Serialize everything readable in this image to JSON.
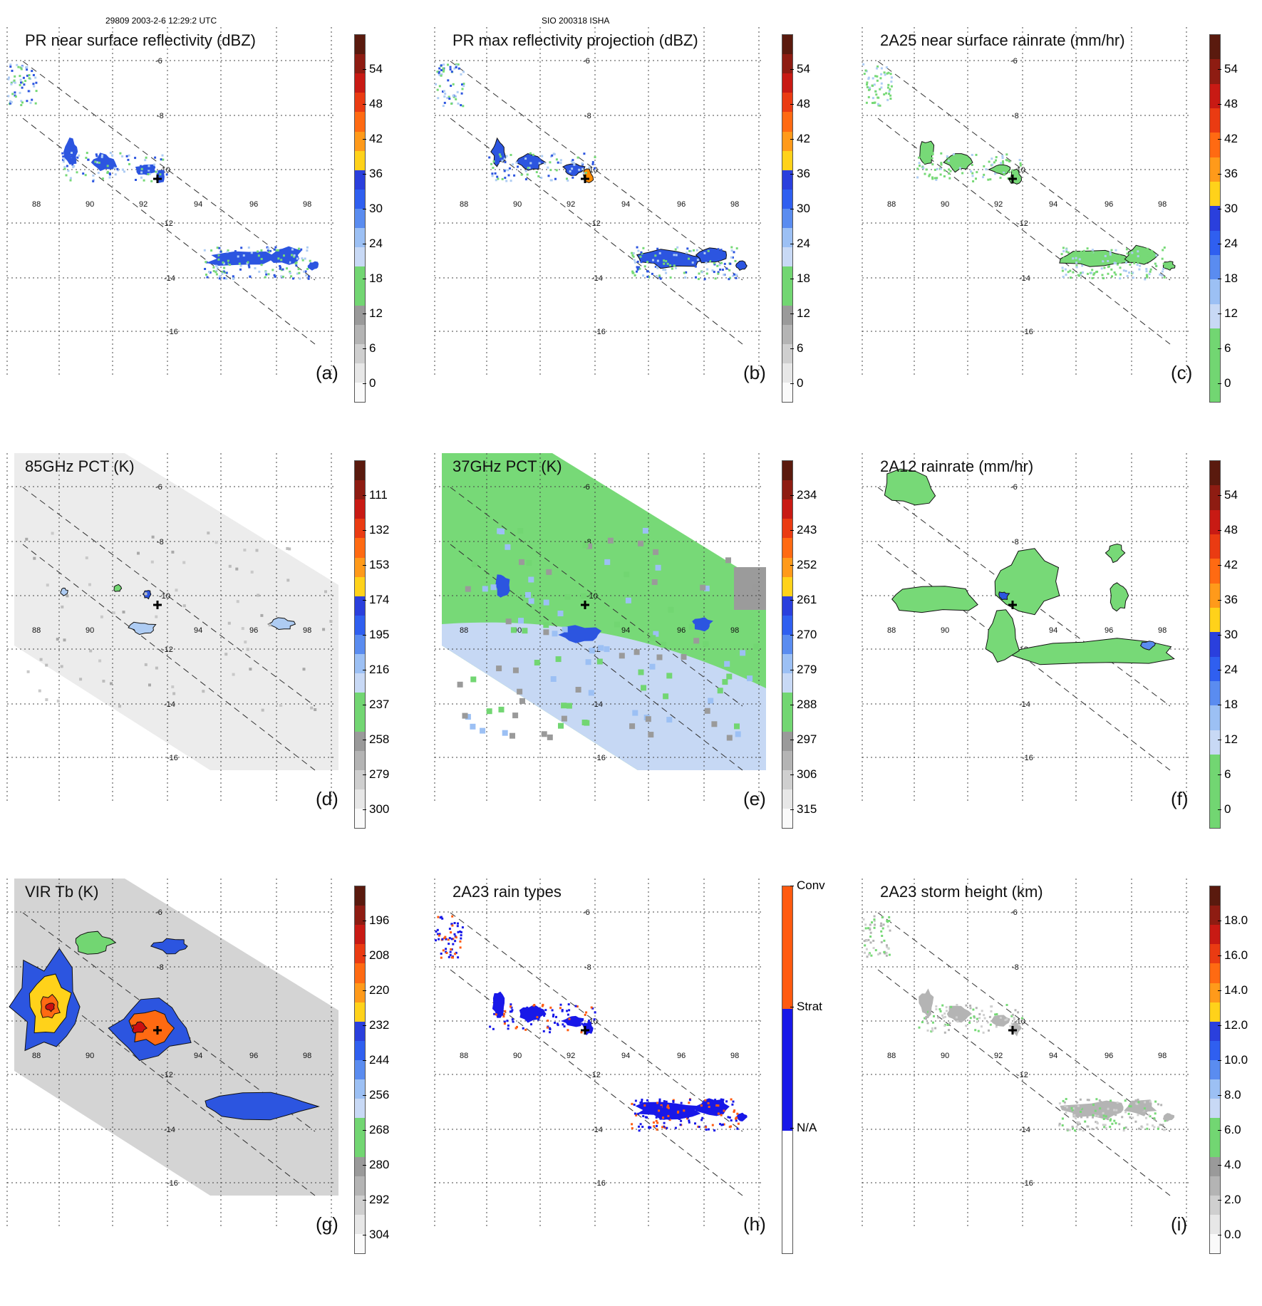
{
  "header": {
    "left": "29809 2003-2-6 12:29:2 UTC",
    "center": "SIO 200318 ISHA"
  },
  "grid": {
    "lon_labels": [
      "88",
      "90",
      "92",
      "94",
      "96",
      "98"
    ],
    "lat_labels": [
      "-6",
      "-8",
      "-10",
      "-12",
      "-14",
      "-16"
    ]
  },
  "colors": {
    "green": "#77d977",
    "light_blue": "#aeccf3",
    "blue": "#2c55e0",
    "yellow": "#f5e400",
    "orange": "#ff8c00",
    "red": "#cc1010",
    "storm_center_marker": "#000000"
  },
  "panels": [
    {
      "id": "a",
      "title": "PR near surface reflectivity (dBZ)",
      "label": "(a)",
      "scale": "dbz",
      "ticks": [
        "54",
        "48",
        "42",
        "36",
        "30",
        "24",
        "18",
        "12",
        "6",
        "0"
      ]
    },
    {
      "id": "b",
      "title": "PR max reflectivity projection (dBZ)",
      "label": "(b)",
      "scale": "dbz",
      "ticks": [
        "54",
        "48",
        "42",
        "36",
        "30",
        "24",
        "18",
        "12",
        "6",
        "0"
      ]
    },
    {
      "id": "c",
      "title": "2A25 near surface rainrate (mm/hr)",
      "label": "(c)",
      "scale": "rain",
      "ticks": [
        "54",
        "48",
        "42",
        "36",
        "30",
        "24",
        "18",
        "12",
        "6",
        "0"
      ]
    },
    {
      "id": "d",
      "title": "85GHz PCT (K)",
      "label": "(d)",
      "scale": "pct",
      "ticks": [
        "111",
        "132",
        "153",
        "174",
        "195",
        "216",
        "237",
        "258",
        "279",
        "300"
      ]
    },
    {
      "id": "e",
      "title": "37GHz PCT (K)",
      "label": "(e)",
      "scale": "pct",
      "ticks": [
        "234",
        "243",
        "252",
        "261",
        "270",
        "279",
        "288",
        "297",
        "306",
        "315"
      ]
    },
    {
      "id": "f",
      "title": "2A12 rainrate (mm/hr)",
      "label": "(f)",
      "scale": "rain",
      "ticks": [
        "54",
        "48",
        "42",
        "36",
        "30",
        "24",
        "18",
        "12",
        "6",
        "0"
      ]
    },
    {
      "id": "g",
      "title": "VIR Tb (K)",
      "label": "(g)",
      "scale": "pct",
      "ticks": [
        "196",
        "208",
        "220",
        "232",
        "244",
        "256",
        "268",
        "280",
        "292",
        "304"
      ]
    },
    {
      "id": "h",
      "title": "2A23 rain types",
      "label": "(h)",
      "scale": "types",
      "ticks": [
        "Conv",
        "Strat",
        "N/A"
      ]
    },
    {
      "id": "i",
      "title": "2A23 storm height (km)",
      "label": "(i)",
      "scale": "height",
      "ticks": [
        "18.0",
        "16.0",
        "14.0",
        "12.0",
        "10.0",
        "8.0",
        "6.0",
        "4.0",
        "2.0",
        "0.0"
      ]
    }
  ]
}
